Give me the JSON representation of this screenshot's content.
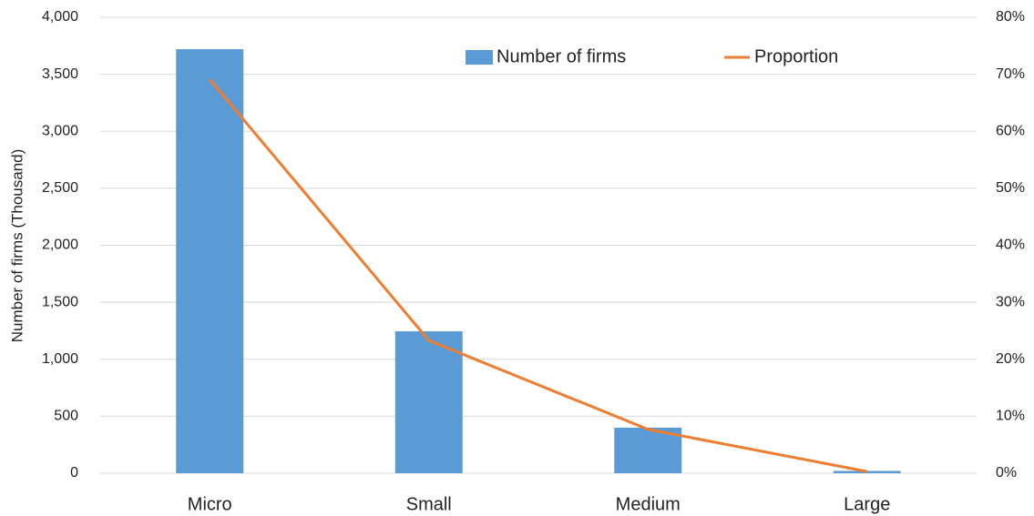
{
  "chart_data": {
    "type": "bar-line",
    "y_label": "Number of firms (Thousand)",
    "categories": [
      "Micro",
      "Small",
      "Medium",
      "Large"
    ],
    "series": [
      {
        "name": "Number of firms",
        "color": "#5b9bd5",
        "type": "bar",
        "values": [
          3720,
          1245,
          400,
          20
        ]
      },
      {
        "name": "Proportion",
        "color": "#ed7d31",
        "type": "line",
        "axis": "y2",
        "values": [
          69.1,
          23.3,
          7.7,
          0.3
        ]
      }
    ],
    "ylim": [
      0,
      4000
    ],
    "yticks": [
      0,
      500,
      {
        "value": 1000,
        "label": "1,000"
      },
      {
        "value": 1500,
        "label": "1,500"
      },
      {
        "value": 2000,
        "label": "2,000"
      },
      {
        "value": 2500,
        "label": "2,500"
      },
      {
        "value": 3000,
        "label": "3,000"
      },
      {
        "value": 3500,
        "label": "3,500"
      },
      {
        "value": 4000,
        "label": "4,000"
      }
    ],
    "y2lim": [
      0,
      80
    ],
    "y2ticks": [
      {
        "value": 0,
        "label": "0%"
      },
      {
        "value": 10,
        "label": "10%"
      },
      {
        "value": 20,
        "label": "20%"
      },
      {
        "value": 30,
        "label": "30%"
      },
      {
        "value": 40,
        "label": "40%"
      },
      {
        "value": 50,
        "label": "50%"
      },
      {
        "value": 60,
        "label": "60%"
      },
      {
        "value": 70,
        "label": "70%"
      },
      {
        "value": 80,
        "label": "80%"
      }
    ],
    "grid": true,
    "legend": "top"
  }
}
